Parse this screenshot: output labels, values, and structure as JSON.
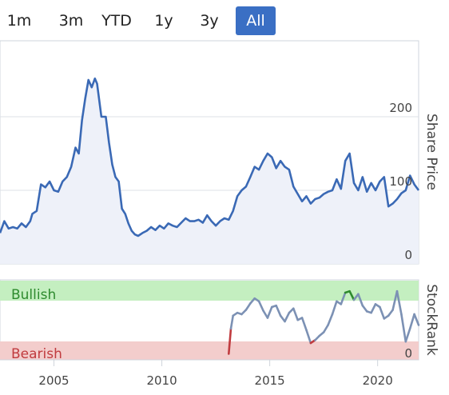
{
  "range_selector": {
    "buttons": [
      "1m",
      "3m",
      "YTD",
      "1y",
      "3y",
      "All"
    ],
    "active": "All",
    "active_color": "#3a6fc4"
  },
  "chart_data": [
    {
      "type": "line",
      "ylabel": "Share Price",
      "ylim": [
        0,
        260
      ],
      "xlim": [
        2002.5,
        2021.9
      ],
      "yticks": [
        0,
        100,
        200
      ],
      "xticks": [
        2005,
        2010,
        2015,
        2020
      ],
      "grid": true,
      "line_color": "#3a69b5",
      "area_fill": "#eef1f9",
      "x": [
        2002.5,
        2002.7,
        2002.9,
        2003.1,
        2003.3,
        2003.5,
        2003.7,
        2003.9,
        2004.0,
        2004.2,
        2004.4,
        2004.6,
        2004.8,
        2005.0,
        2005.2,
        2005.4,
        2005.6,
        2005.8,
        2006.0,
        2006.15,
        2006.3,
        2006.45,
        2006.6,
        2006.75,
        2006.9,
        2007.0,
        2007.2,
        2007.4,
        2007.55,
        2007.7,
        2007.85,
        2008.0,
        2008.15,
        2008.3,
        2008.45,
        2008.6,
        2008.75,
        2008.9,
        2009.1,
        2009.3,
        2009.5,
        2009.7,
        2009.9,
        2010.1,
        2010.3,
        2010.5,
        2010.7,
        2010.9,
        2011.1,
        2011.3,
        2011.5,
        2011.7,
        2011.9,
        2012.1,
        2012.3,
        2012.5,
        2012.7,
        2012.9,
        2013.1,
        2013.3,
        2013.5,
        2013.7,
        2013.9,
        2014.1,
        2014.3,
        2014.5,
        2014.7,
        2014.9,
        2015.1,
        2015.3,
        2015.5,
        2015.7,
        2015.9,
        2016.1,
        2016.3,
        2016.5,
        2016.7,
        2016.9,
        2017.1,
        2017.3,
        2017.5,
        2017.7,
        2017.9,
        2018.1,
        2018.3,
        2018.5,
        2018.7,
        2018.9,
        2019.1,
        2019.3,
        2019.5,
        2019.7,
        2019.9,
        2020.1,
        2020.3,
        2020.5,
        2020.7,
        2020.9,
        2021.1,
        2021.3,
        2021.5,
        2021.7,
        2021.9
      ],
      "y": [
        42,
        58,
        48,
        50,
        48,
        55,
        50,
        58,
        68,
        72,
        108,
        104,
        112,
        100,
        98,
        112,
        118,
        132,
        158,
        150,
        195,
        225,
        250,
        240,
        252,
        245,
        200,
        200,
        165,
        135,
        118,
        112,
        75,
        68,
        55,
        45,
        40,
        38,
        42,
        45,
        50,
        46,
        52,
        48,
        55,
        52,
        50,
        56,
        62,
        58,
        58,
        60,
        56,
        66,
        58,
        52,
        58,
        62,
        60,
        72,
        92,
        100,
        105,
        118,
        132,
        128,
        140,
        150,
        145,
        130,
        140,
        132,
        128,
        105,
        95,
        85,
        92,
        82,
        88,
        90,
        95,
        98,
        100,
        115,
        102,
        140,
        150,
        110,
        100,
        118,
        98,
        110,
        100,
        112,
        118,
        78,
        82,
        88,
        96,
        100,
        120,
        108,
        100
      ]
    },
    {
      "type": "line",
      "ylabel": "StockRank",
      "ylim": [
        0,
        100
      ],
      "yticks": [
        0
      ],
      "bands": [
        {
          "label": "Bullish",
          "color": "#c4efc0",
          "text_color": "#2e8b2e"
        },
        {
          "label": "Bearish",
          "color": "#f3cdcc",
          "text_color": "#c03b3f"
        }
      ],
      "line_color": "#7c91b4",
      "bullish_color": "#2e8b2e",
      "bearish_color": "#c03b3f",
      "x": [
        2013.1,
        2013.2,
        2013.3,
        2013.5,
        2013.7,
        2013.9,
        2014.1,
        2014.3,
        2014.5,
        2014.7,
        2014.9,
        2015.1,
        2015.3,
        2015.5,
        2015.7,
        2015.9,
        2016.1,
        2016.3,
        2016.5,
        2016.7,
        2016.9,
        2017.1,
        2017.3,
        2017.5,
        2017.7,
        2017.9,
        2018.1,
        2018.3,
        2018.5,
        2018.7,
        2018.9,
        2019.1,
        2019.3,
        2019.5,
        2019.7,
        2019.9,
        2020.1,
        2020.3,
        2020.5,
        2020.7,
        2020.9,
        2021.1,
        2021.3,
        2021.5,
        2021.7,
        2021.9
      ],
      "y": [
        5,
        40,
        58,
        62,
        60,
        66,
        75,
        82,
        78,
        65,
        55,
        70,
        72,
        58,
        50,
        62,
        68,
        52,
        55,
        38,
        20,
        24,
        30,
        35,
        45,
        60,
        78,
        74,
        90,
        92,
        80,
        88,
        72,
        64,
        62,
        74,
        70,
        54,
        58,
        66,
        92,
        60,
        22,
        40,
        60,
        45
      ]
    }
  ]
}
